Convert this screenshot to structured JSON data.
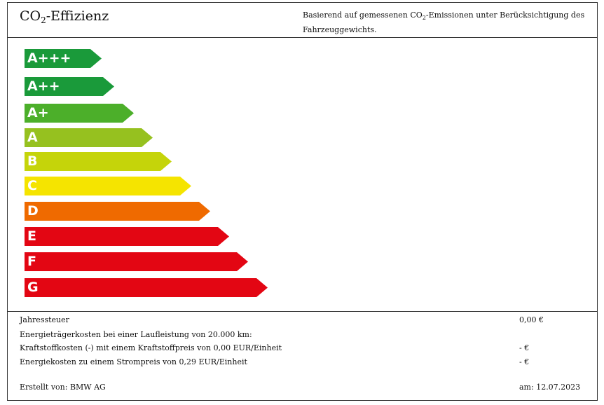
{
  "header": {
    "title_main": "CO",
    "title_sub": "2",
    "title_rest": "-Effizienz",
    "desc_pre": "Basierend auf gemessenen CO",
    "desc_sub": "2",
    "desc_post": "-Emissionen unter Berücksichtigung des Fahrzeuggewichts."
  },
  "scale": [
    {
      "label": "A+++",
      "color": "#1a9a3a"
    },
    {
      "label": "A++",
      "color": "#1a9a3a"
    },
    {
      "label": "A+",
      "color": "#4caf2a"
    },
    {
      "label": "A",
      "color": "#96c11f"
    },
    {
      "label": "B",
      "color": "#c5d40a"
    },
    {
      "label": "C",
      "color": "#f5e400"
    },
    {
      "label": "D",
      "color": "#ef6a00"
    },
    {
      "label": "E",
      "color": "#e30613"
    },
    {
      "label": "F",
      "color": "#e30613"
    },
    {
      "label": "G",
      "color": "#e30613"
    }
  ],
  "costs": {
    "rows": [
      {
        "label": "Jahressteuer",
        "value": "0,00 €"
      },
      {
        "label": "Energieträgerkosten bei einer Laufleistung von 20.000 km:",
        "value": ""
      },
      {
        "label": "Kraftstoffkosten (-) mit einem Kraftstoffpreis von 0,00 EUR/Einheit",
        "value": "- €"
      },
      {
        "label": "Energiekosten zu einem Strompreis von 0,29 EUR/Einheit",
        "value": "- €"
      }
    ],
    "created_by": "Erstellt von: BMW AG",
    "date": "am: 12.07.2023"
  }
}
